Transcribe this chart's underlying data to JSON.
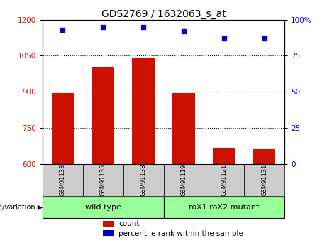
{
  "title": "GDS2769 / 1632063_s_at",
  "samples": [
    "GSM91133",
    "GSM91135",
    "GSM91138",
    "GSM91119",
    "GSM91121",
    "GSM91131"
  ],
  "counts": [
    893,
    1005,
    1040,
    893,
    665,
    660
  ],
  "percentile_ranks": [
    93,
    95,
    95,
    92,
    87,
    87
  ],
  "ylim_left": [
    600,
    1200
  ],
  "ylim_right": [
    0,
    100
  ],
  "yticks_left": [
    600,
    750,
    900,
    1050,
    1200
  ],
  "yticks_right": [
    0,
    25,
    50,
    75,
    100
  ],
  "bar_color": "#cc1100",
  "dot_color": "#0000cc",
  "groups": [
    {
      "label": "wild type",
      "indices": [
        0,
        1,
        2
      ],
      "color": "#99ff99"
    },
    {
      "label": "roX1 roX2 mutant",
      "indices": [
        3,
        4,
        5
      ],
      "color": "#99ff99"
    }
  ],
  "group_label_prefix": "genotype/variation",
  "legend_count_label": "count",
  "legend_percentile_label": "percentile rank within the sample",
  "tick_label_color_left": "#cc1100",
  "tick_label_color_right": "#0000cc",
  "bg_color_sample": "#cccccc",
  "bar_width": 0.55
}
